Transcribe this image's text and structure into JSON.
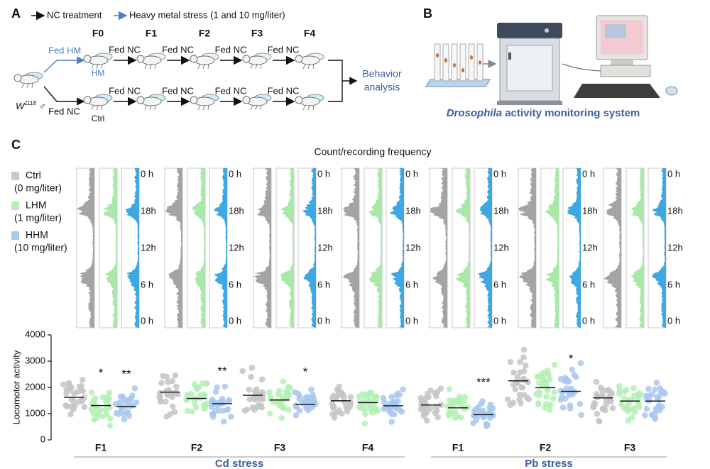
{
  "panel_a": {
    "label": "A",
    "legend": [
      "NC treatment",
      "Heavy metal stress (1 and 10 mg/liter)"
    ],
    "generations": [
      "F0",
      "F1",
      "F2",
      "F3",
      "F4"
    ],
    "strain": "W",
    "strain_sup": "1118",
    "sex": "♂",
    "hm_arrow": "Fed HM",
    "hm_label": "HM",
    "ctrl_arrow": "Fed NC",
    "ctrl_label": "Ctrl",
    "step_label": "Fed NC",
    "outcome": [
      "Behavior",
      "analysis"
    ]
  },
  "panel_b": {
    "label": "B",
    "caption_italic": "Drosophila",
    "caption": "activity monitoring system"
  },
  "panel_c": {
    "label": "C",
    "actogram_title": "Count/recording frequency",
    "legend": [
      {
        "name": "Ctrl",
        "sub": "(0 mg/liter)",
        "color": "#c8c8c8"
      },
      {
        "name": "LHM",
        "sub": "(1 mg/liter)",
        "color": "#b4f0b4"
      },
      {
        "name": "HHM",
        "sub": "(10 mg/liter)",
        "color": "#a9c8ee"
      }
    ],
    "actogram_colors": [
      "#a4a4a4",
      "#a8e8a8",
      "#3ea8e2"
    ],
    "time_labels": [
      "0 h",
      "18h",
      "12h",
      "6 h",
      "0 h"
    ],
    "plot": {
      "type": "dot",
      "ylabel": "Locomotor activity",
      "ylim": [
        0,
        4000
      ],
      "yticks": [
        0,
        1000,
        2000,
        3000,
        4000
      ],
      "categories": [
        "F1",
        "F2",
        "F3",
        "F4",
        "F1",
        "F2",
        "F3"
      ],
      "groups": [
        {
          "name": "Cd stress",
          "size": 4
        },
        {
          "name": "Pb stress",
          "size": 3
        }
      ],
      "series": [
        {
          "name": "Ctrl",
          "color": "#c4c4c4",
          "values": [
            1620,
            1820,
            1700,
            1490,
            1330,
            2250,
            1600
          ]
        },
        {
          "name": "LHM",
          "color": "#b4f0b4",
          "values": [
            1310,
            1580,
            1520,
            1420,
            1220,
            1990,
            1480
          ]
        },
        {
          "name": "HHM",
          "color": "#a9c8ee",
          "values": [
            1270,
            1380,
            1350,
            1300,
            960,
            1850,
            1480
          ]
        }
      ],
      "annotations": [
        {
          "series": 1,
          "category": 0,
          "text": "*"
        },
        {
          "series": 2,
          "category": 0,
          "text": "**"
        },
        {
          "series": 2,
          "category": 1,
          "text": "**"
        },
        {
          "series": 2,
          "category": 2,
          "text": "*"
        },
        {
          "series": 2,
          "category": 4,
          "text": "***"
        },
        {
          "series": 2,
          "category": 5,
          "text": "*"
        }
      ]
    }
  }
}
